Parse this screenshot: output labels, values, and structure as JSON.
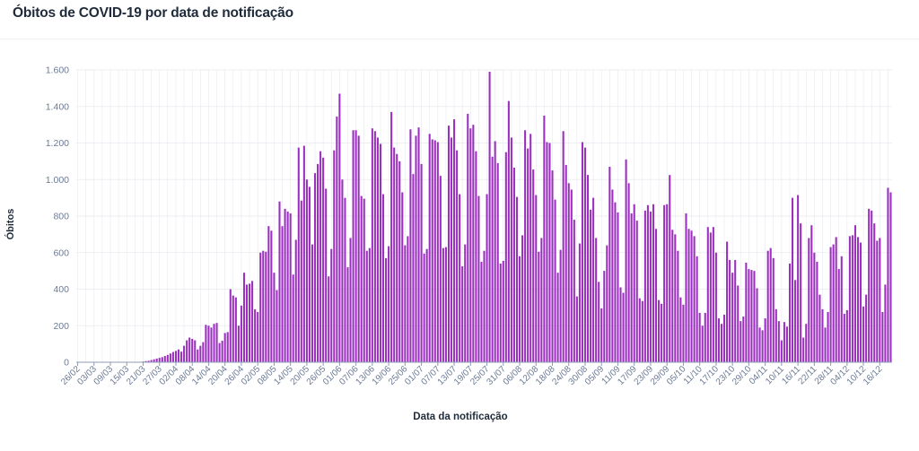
{
  "page": {
    "title": "Óbitos de COVID-19 por data de notificação"
  },
  "colors": {
    "bar": "#9b30bf",
    "grid": "#e6e9ef",
    "axis": "#8f9bb3"
  },
  "chart_data": {
    "type": "bar",
    "xlabel": "Data da notificação",
    "ylabel": "Óbitos",
    "ylim": [
      0,
      1600
    ],
    "yticks": [
      0,
      200,
      400,
      600,
      800,
      1000,
      1200,
      1400,
      1600
    ],
    "ytick_labels": [
      "0",
      "200",
      "400",
      "600",
      "800",
      "1.000",
      "1.200",
      "1.400",
      "1.600"
    ],
    "grid": true,
    "x_tick_labels": [
      "26/02",
      "03/03",
      "09/03",
      "15/03",
      "21/03",
      "27/03",
      "02/04",
      "08/04",
      "14/04",
      "20/04",
      "26/04",
      "02/05",
      "08/05",
      "14/05",
      "20/05",
      "26/05",
      "01/06",
      "07/06",
      "13/06",
      "19/06",
      "25/06",
      "01/07",
      "07/07",
      "13/07",
      "19/07",
      "25/07",
      "31/07",
      "06/08",
      "12/08",
      "18/08",
      "24/08",
      "30/08",
      "05/09",
      "11/09",
      "17/09",
      "23/09",
      "29/09",
      "05/10",
      "11/10",
      "17/10",
      "23/10",
      "29/10",
      "04/11",
      "10/11",
      "16/11",
      "22/11",
      "28/11",
      "04/12",
      "10/12",
      "16/12"
    ],
    "series": [
      {
        "values": [
          0,
          0,
          0,
          0,
          0,
          0,
          0,
          0,
          0,
          0,
          0,
          0,
          0,
          0,
          0,
          0,
          0,
          0,
          0,
          0,
          0,
          0,
          1,
          2,
          4,
          6,
          8,
          12,
          16,
          20,
          24,
          28,
          34,
          40,
          48,
          56,
          62,
          70,
          58,
          90,
          120,
          135,
          128,
          120,
          70,
          90,
          110,
          205,
          200,
          190,
          210,
          215,
          105,
          118,
          160,
          165,
          400,
          365,
          355,
          200,
          310,
          490,
          425,
          430,
          445,
          290,
          275,
          600,
          610,
          605,
          745,
          720,
          490,
          395,
          880,
          745,
          840,
          825,
          815,
          480,
          670,
          1175,
          885,
          1185,
          1000,
          960,
          645,
          1035,
          1085,
          1155,
          1120,
          950,
          470,
          620,
          1160,
          1345,
          1470,
          1000,
          900,
          520,
          680,
          1270,
          1270,
          1240,
          910,
          895,
          610,
          625,
          1280,
          1265,
          1230,
          1195,
          920,
          570,
          635,
          1370,
          1175,
          1140,
          1100,
          930,
          640,
          690,
          1275,
          1030,
          1240,
          1285,
          1085,
          595,
          620,
          1250,
          1220,
          1215,
          1205,
          1020,
          625,
          630,
          1295,
          1230,
          1330,
          1160,
          920,
          525,
          645,
          1360,
          1280,
          1300,
          1155,
          910,
          550,
          610,
          920,
          1590,
          1125,
          1210,
          1090,
          540,
          555,
          1150,
          1430,
          1230,
          1065,
          905,
          580,
          695,
          1270,
          1170,
          1250,
          1055,
          915,
          605,
          680,
          1350,
          1205,
          1200,
          1050,
          890,
          490,
          615,
          1265,
          1080,
          980,
          945,
          780,
          360,
          650,
          1205,
          1175,
          1025,
          835,
          900,
          680,
          440,
          295,
          500,
          640,
          1070,
          945,
          875,
          820,
          410,
          380,
          1110,
          980,
          815,
          865,
          775,
          350,
          335,
          830,
          860,
          825,
          865,
          730,
          340,
          320,
          860,
          865,
          1025,
          725,
          700,
          610,
          355,
          315,
          815,
          730,
          720,
          690,
          580,
          270,
          200,
          270,
          740,
          710,
          740,
          600,
          240,
          210,
          260,
          660,
          560,
          490,
          560,
          420,
          225,
          250,
          545,
          510,
          505,
          500,
          405,
          190,
          175,
          240,
          610,
          625,
          570,
          290,
          225,
          120,
          220,
          195,
          540,
          900,
          450,
          915,
          760,
          135,
          210,
          680,
          750,
          600,
          550,
          370,
          290,
          190,
          275,
          630,
          645,
          685,
          510,
          580,
          265,
          285,
          690,
          695,
          750,
          685,
          655,
          305,
          370,
          840,
          830,
          760,
          665,
          680,
          275,
          425,
          955,
          930
        ]
      }
    ]
  }
}
